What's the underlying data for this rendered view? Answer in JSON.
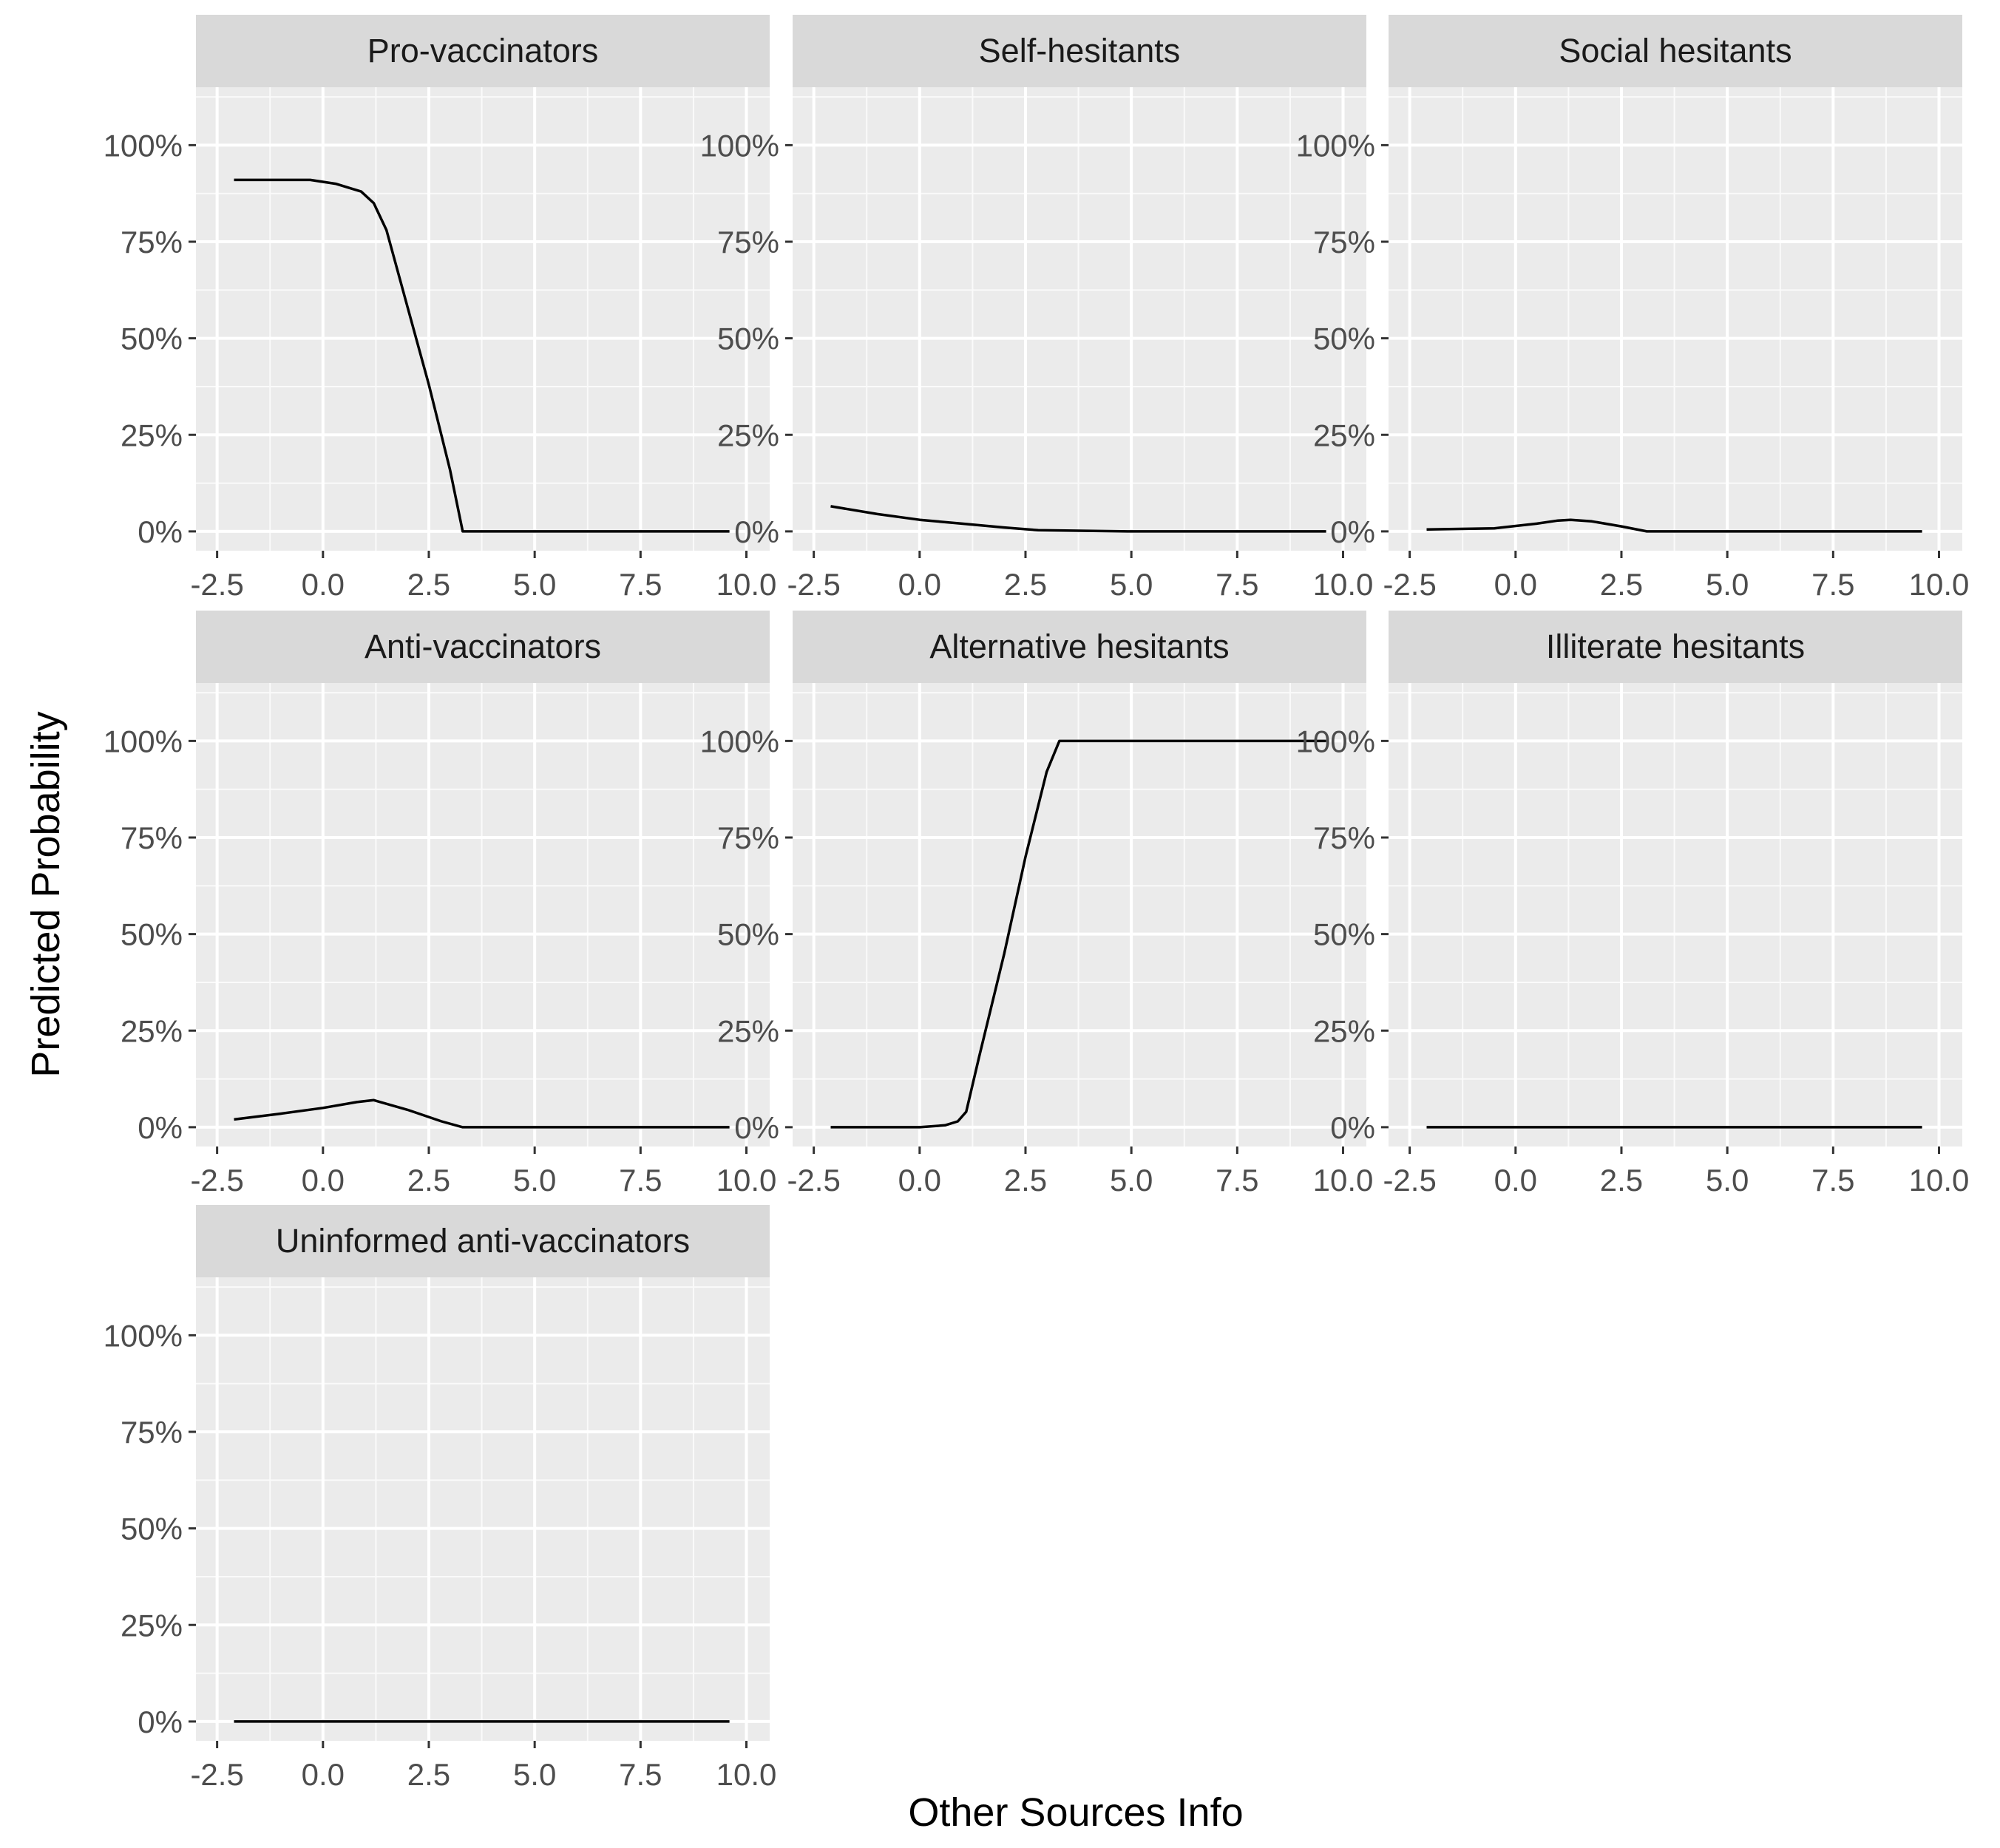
{
  "chart_data": {
    "type": "line",
    "layout": "facet_wrap",
    "xlabel": "Other Sources Info",
    "ylabel": "Predicted Probability",
    "xlim": [
      -2.5,
      10.0
    ],
    "ylim": [
      0,
      100
    ],
    "x_ticks": [
      "-2.5",
      "0.0",
      "2.5",
      "5.0",
      "7.5",
      "10.0"
    ],
    "y_ticks": [
      "0%",
      "25%",
      "50%",
      "75%",
      "100%"
    ],
    "y_unit": "%",
    "grid": true,
    "panel_background": "#ebebeb",
    "strip_background": "#d9d9d9",
    "line_color": "#000000",
    "panels": [
      {
        "title": "Pro-vaccinators",
        "x": [
          -2.1,
          -1.0,
          -0.3,
          0.3,
          0.9,
          1.2,
          1.5,
          2.0,
          2.5,
          3.0,
          3.3,
          5.0,
          7.5,
          9.6
        ],
        "y": [
          91,
          91,
          91,
          90,
          88,
          85,
          78,
          58,
          38,
          16,
          0,
          0,
          0,
          0
        ]
      },
      {
        "title": "Self-hesitants",
        "x": [
          -2.1,
          -1.0,
          0.0,
          1.0,
          2.0,
          2.8,
          5.0,
          7.5,
          9.6
        ],
        "y": [
          6.5,
          4.5,
          3.0,
          2.0,
          1.0,
          0.3,
          0,
          0,
          0
        ]
      },
      {
        "title": "Social hesitants",
        "x": [
          -2.1,
          -0.5,
          0.5,
          1.0,
          1.3,
          1.8,
          2.5,
          3.1,
          5.0,
          7.5,
          9.6
        ],
        "y": [
          0.5,
          0.8,
          2.0,
          2.8,
          3.0,
          2.6,
          1.3,
          0,
          0,
          0,
          0
        ]
      },
      {
        "title": "Anti-vaccinators",
        "x": [
          -2.1,
          -1.0,
          0.0,
          0.8,
          1.2,
          2.0,
          2.8,
          3.3,
          5.0,
          7.5,
          9.6
        ],
        "y": [
          2.0,
          3.5,
          5.0,
          6.5,
          7.0,
          4.5,
          1.5,
          0,
          0,
          0,
          0
        ]
      },
      {
        "title": "Alternative hesitants",
        "x": [
          -2.1,
          0.0,
          0.6,
          0.9,
          1.1,
          1.4,
          2.0,
          2.5,
          3.0,
          3.3,
          5.0,
          7.5,
          9.6
        ],
        "y": [
          0,
          0,
          0.5,
          1.5,
          4,
          18,
          45,
          70,
          92,
          100,
          100,
          100,
          100
        ]
      },
      {
        "title": "Illiterate hesitants",
        "x": [
          -2.1,
          9.6
        ],
        "y": [
          0,
          0
        ]
      },
      {
        "title": "Uninformed anti-vaccinators",
        "x": [
          -2.1,
          9.6
        ],
        "y": [
          0,
          0
        ]
      }
    ]
  }
}
